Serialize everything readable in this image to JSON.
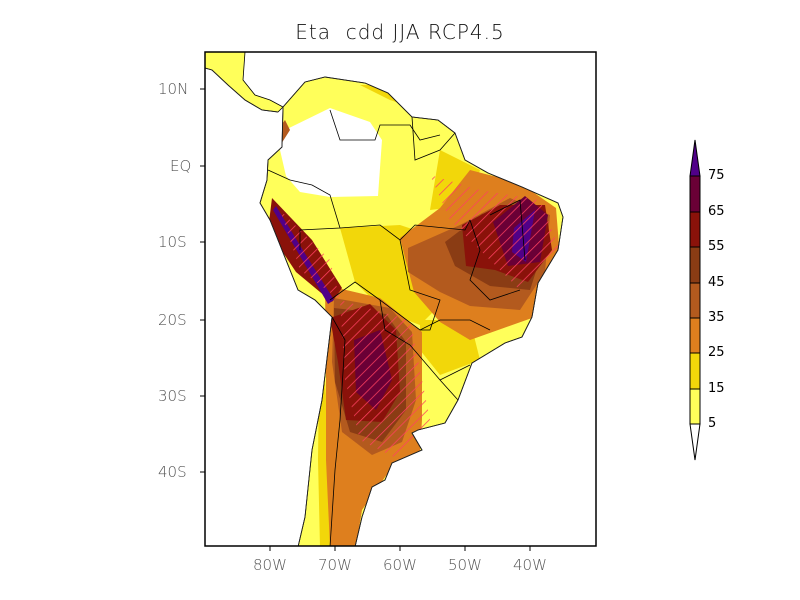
{
  "title": "Eta  cdd JJA RCP4.5",
  "map": {
    "projection": "lat-lon",
    "lon_range": [
      "90W",
      "30W"
    ],
    "lat_range": [
      "15N",
      "50S"
    ],
    "lat_labels": [
      "10N",
      "EQ",
      "10S",
      "20S",
      "30S",
      "40S"
    ],
    "lon_labels": [
      "80W",
      "70W",
      "60W",
      "50W",
      "40W"
    ],
    "hatching_color": "#ff4060"
  },
  "colorbar": {
    "levels": [
      "5",
      "15",
      "25",
      "35",
      "45",
      "55",
      "65",
      "75"
    ],
    "colors": [
      "#ffffff",
      "#ffff5a",
      "#f2d70a",
      "#de7f1e",
      "#b35a1e",
      "#8a3c14",
      "#8a120a",
      "#6a0036",
      "#500088"
    ]
  }
}
